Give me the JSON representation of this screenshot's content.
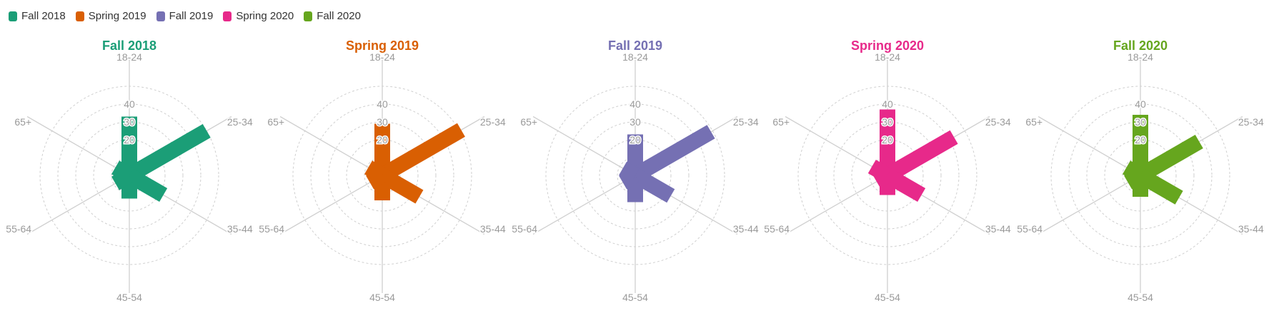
{
  "legend": [
    {
      "label": "Fall 2018",
      "color": "#1b9e77"
    },
    {
      "label": "Spring 2019",
      "color": "#d95f02"
    },
    {
      "label": "Fall 2019",
      "color": "#7570b3"
    },
    {
      "label": "Spring 2020",
      "color": "#e7298a"
    },
    {
      "label": "Fall 2020",
      "color": "#66a61e"
    }
  ],
  "chart_data": [
    {
      "type": "bar",
      "title": "Fall 2018",
      "color": "#1b9e77",
      "categories": [
        "18-24",
        "25-34",
        "35-44",
        "45-54",
        "55-64",
        "65+"
      ],
      "values": [
        33,
        50,
        22,
        13,
        9,
        9
      ],
      "radial_ticks": [
        "20",
        "30",
        "40"
      ],
      "rlim": [
        0,
        50
      ]
    },
    {
      "type": "bar",
      "title": "Spring 2019",
      "color": "#d95f02",
      "categories": [
        "18-24",
        "25-34",
        "35-44",
        "45-54",
        "55-64",
        "65+"
      ],
      "values": [
        29,
        51,
        24,
        14,
        8,
        9
      ],
      "radial_ticks": [
        "20",
        "30",
        "40"
      ],
      "rlim": [
        0,
        50
      ]
    },
    {
      "type": "bar",
      "title": "Fall 2019",
      "color": "#7570b3",
      "categories": [
        "18-24",
        "25-34",
        "35-44",
        "45-54",
        "55-64",
        "65+"
      ],
      "values": [
        23,
        49,
        23,
        15,
        8,
        8
      ],
      "radial_ticks": [
        "20",
        "30",
        "40"
      ],
      "rlim": [
        0,
        50
      ]
    },
    {
      "type": "bar",
      "title": "Spring 2020",
      "color": "#e7298a",
      "categories": [
        "18-24",
        "25-34",
        "35-44",
        "45-54",
        "55-64",
        "65+"
      ],
      "values": [
        37,
        43,
        22,
        11,
        7,
        10
      ],
      "radial_ticks": [
        "20",
        "30",
        "40"
      ],
      "rlim": [
        0,
        50
      ]
    },
    {
      "type": "bar",
      "title": "Fall 2020",
      "color": "#66a61e",
      "categories": [
        "18-24",
        "25-34",
        "35-44",
        "45-54",
        "55-64",
        "65+"
      ],
      "values": [
        34,
        38,
        25,
        12,
        8,
        9
      ],
      "radial_ticks": [
        "20",
        "30",
        "40"
      ],
      "rlim": [
        0,
        50
      ]
    }
  ]
}
